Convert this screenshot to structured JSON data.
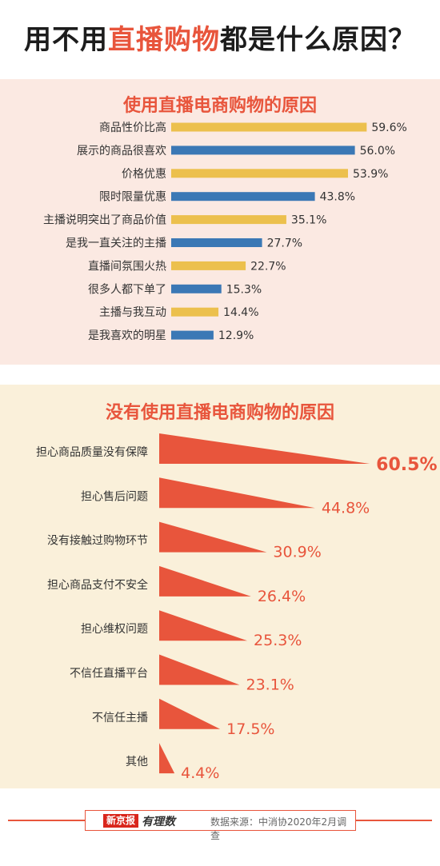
{
  "title": {
    "part1": "用不用",
    "highlight": "直播购物",
    "part2": "都是什么原因？"
  },
  "footer": {
    "brand": "新京报",
    "brand_sub": "有理数",
    "source": "数据来源：中消协2020年2月调查"
  },
  "colors": {
    "accent": "#e8553c",
    "bar_yellow": "#ecc04d",
    "bar_blue": "#3b78b5",
    "panel1_bg": "#fbe9e2",
    "panel2_bg": "#faf0da"
  },
  "chart_data": [
    {
      "type": "bar",
      "orientation": "horizontal",
      "title": "使用直播电商购物的原因",
      "categories": [
        "商品性价比高",
        "展示的商品很喜欢",
        "价格优惠",
        "限时限量优惠",
        "主播说明突出了商品价值",
        "是我一直关注的主播",
        "直播间氛围火热",
        "很多人都下单了",
        "主播与我互动",
        "是我喜欢的明星"
      ],
      "values": [
        59.6,
        56.0,
        53.9,
        43.8,
        35.1,
        27.7,
        22.7,
        15.3,
        14.4,
        12.9
      ],
      "value_labels": [
        "59.6%",
        "56.0%",
        "53.9%",
        "43.8%",
        "35.1%",
        "27.7%",
        "22.7%",
        "15.3%",
        "14.4%",
        "12.9%"
      ],
      "unit": "%",
      "bar_colors": [
        "yellow",
        "blue",
        "yellow",
        "blue",
        "yellow",
        "blue",
        "yellow",
        "blue",
        "yellow",
        "blue"
      ]
    },
    {
      "type": "bar",
      "orientation": "horizontal",
      "style": "wedge",
      "title": "没有使用直播电商购物的原因",
      "categories": [
        "担心商品质量没有保障",
        "担心售后问题",
        "没有接触过购物环节",
        "担心商品支付不安全",
        "担心维权问题",
        "不信任直播平台",
        "不信任主播",
        "其他"
      ],
      "values": [
        60.5,
        44.8,
        30.9,
        26.4,
        25.3,
        23.1,
        17.5,
        4.4
      ],
      "value_labels": [
        "60.5%",
        "44.8%",
        "30.9%",
        "26.4%",
        "25.3%",
        "23.1%",
        "17.5%",
        "4.4%"
      ],
      "unit": "%"
    }
  ]
}
